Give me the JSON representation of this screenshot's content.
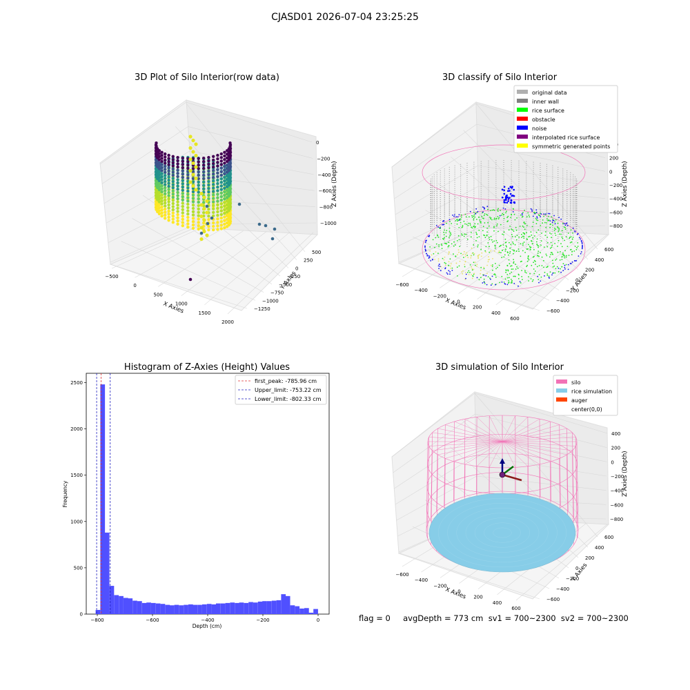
{
  "figure": {
    "suptitle": "CJASD01 2026-07-04 23:25:25",
    "footer": "flag = 0     avgDepth = 773 cm  sv1 = 700~2300  sv2 = 700~2300"
  },
  "colors": {
    "hist_bar": "#5050ff",
    "first_peak": "#e03030",
    "limit_line": "#2020c0",
    "silo_pink": "#f272b6",
    "rice_blue": "#87cde8",
    "inner_wall": "#808080",
    "rice_surface": "#00ff00",
    "obstacle": "#ff0000",
    "noise": "#0000ff",
    "interpolated": "#800080",
    "symmetric": "#ffff00"
  },
  "panels": {
    "raw": {
      "title": "3D Plot of Silo Interior(row data)",
      "xlabel": "X Axies",
      "ylabel": "Y Axies",
      "zlabel": "Z Axies (Depth)",
      "xticks": [
        "−500",
        "0",
        "500",
        "1000",
        "1500",
        "2000"
      ],
      "yticks": [
        "500",
        "250",
        "0",
        "−250",
        "−500",
        "−750",
        "−1000",
        "−1250"
      ],
      "zticks": [
        "0",
        "−200",
        "−400",
        "−600",
        "−800",
        "−1000"
      ]
    },
    "classify": {
      "title": "3D classify of Silo Interior",
      "xlabel": "X Axies",
      "ylabel": "Y Axies",
      "zlabel": "Z Axies (Depth)",
      "xticks": [
        "−600",
        "−400",
        "−200",
        "0",
        "200",
        "400",
        "600"
      ],
      "yticks": [
        "600",
        "400",
        "200",
        "0",
        "−200",
        "−400",
        "−600"
      ],
      "zticks": [
        "400",
        "200",
        "0",
        "−200",
        "−400",
        "−600",
        "−800"
      ],
      "legend": [
        {
          "label": "original data",
          "color": "#b0b0b0"
        },
        {
          "label": "inner wall",
          "color": "#808080"
        },
        {
          "label": "rice surface",
          "color": "#00ff00"
        },
        {
          "label": "obstacle",
          "color": "#ff0000"
        },
        {
          "label": "noise",
          "color": "#0000ff"
        },
        {
          "label": "interpolated rice surface",
          "color": "#800080"
        },
        {
          "label": "symmetric generated points",
          "color": "#ffff00"
        }
      ]
    },
    "simulation": {
      "title": "3D simulation of Silo Interior",
      "xlabel": "X Axies",
      "ylabel": "Y Axies",
      "zlabel": "Z Axies (Depth)",
      "xticks": [
        "−600",
        "−400",
        "−200",
        "0",
        "200",
        "400",
        "600"
      ],
      "yticks": [
        "600",
        "400",
        "200",
        "0",
        "−200",
        "−400",
        "−600"
      ],
      "zticks": [
        "400",
        "200",
        "0",
        "−200",
        "−400",
        "−600",
        "−800"
      ],
      "legend": [
        {
          "label": "silo",
          "color": "#f272b6"
        },
        {
          "label": "rice simulation",
          "color": "#87cde8"
        },
        {
          "label": "auger",
          "color": "#ff4500"
        },
        {
          "label": "center(0,0)",
          "color": ""
        }
      ]
    }
  },
  "chart_data": {
    "type": "bar",
    "title": "Histogram of Z-Axies (Height) Values",
    "xlabel": "Depth (cm)",
    "ylabel": "Frequency",
    "xlim": [
      -840,
      40
    ],
    "ylim": [
      0,
      2600
    ],
    "xticks": [
      -800,
      -600,
      -400,
      -200,
      0
    ],
    "yticks": [
      0,
      500,
      1000,
      1500,
      2000,
      2500
    ],
    "bin_width": 16.8,
    "bins": [
      {
        "x0": -806,
        "value": 45
      },
      {
        "x0": -789,
        "value": 2480
      },
      {
        "x0": -773,
        "value": 880
      },
      {
        "x0": -756,
        "value": 305
      },
      {
        "x0": -739,
        "value": 205
      },
      {
        "x0": -722,
        "value": 195
      },
      {
        "x0": -705,
        "value": 175
      },
      {
        "x0": -689,
        "value": 170
      },
      {
        "x0": -672,
        "value": 145
      },
      {
        "x0": -655,
        "value": 140
      },
      {
        "x0": -638,
        "value": 120
      },
      {
        "x0": -622,
        "value": 125
      },
      {
        "x0": -605,
        "value": 120
      },
      {
        "x0": -588,
        "value": 115
      },
      {
        "x0": -571,
        "value": 110
      },
      {
        "x0": -554,
        "value": 100
      },
      {
        "x0": -538,
        "value": 95
      },
      {
        "x0": -521,
        "value": 100
      },
      {
        "x0": -504,
        "value": 95
      },
      {
        "x0": -487,
        "value": 100
      },
      {
        "x0": -470,
        "value": 105
      },
      {
        "x0": -454,
        "value": 100
      },
      {
        "x0": -437,
        "value": 100
      },
      {
        "x0": -420,
        "value": 105
      },
      {
        "x0": -403,
        "value": 110
      },
      {
        "x0": -386,
        "value": 105
      },
      {
        "x0": -370,
        "value": 115
      },
      {
        "x0": -353,
        "value": 115
      },
      {
        "x0": -336,
        "value": 120
      },
      {
        "x0": -319,
        "value": 125
      },
      {
        "x0": -302,
        "value": 120
      },
      {
        "x0": -286,
        "value": 125
      },
      {
        "x0": -269,
        "value": 120
      },
      {
        "x0": -252,
        "value": 130
      },
      {
        "x0": -235,
        "value": 125
      },
      {
        "x0": -218,
        "value": 135
      },
      {
        "x0": -202,
        "value": 140
      },
      {
        "x0": -185,
        "value": 140
      },
      {
        "x0": -168,
        "value": 145
      },
      {
        "x0": -151,
        "value": 150
      },
      {
        "x0": -134,
        "value": 215
      },
      {
        "x0": -118,
        "value": 195
      },
      {
        "x0": -101,
        "value": 95
      },
      {
        "x0": -84,
        "value": 85
      },
      {
        "x0": -67,
        "value": 60
      },
      {
        "x0": -50,
        "value": 65
      },
      {
        "x0": -34,
        "value": 15
      },
      {
        "x0": -17,
        "value": 55
      }
    ],
    "vlines": [
      {
        "x": -785.96,
        "label": "first_peak: -785.96 cm",
        "color": "#e03030"
      },
      {
        "x": -753.22,
        "label": "Upper_limit: -753.22 cm",
        "color": "#2020c0"
      },
      {
        "x": -802.33,
        "label": "Lower_limit: -802.33 cm",
        "color": "#2020c0"
      }
    ],
    "legend_position": "upper right"
  }
}
